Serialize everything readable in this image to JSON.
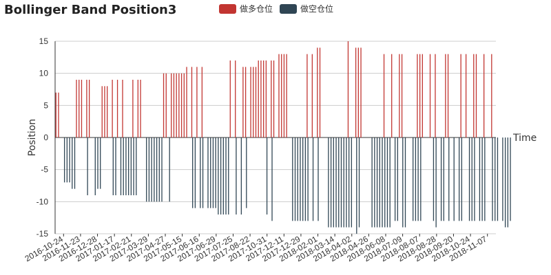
{
  "chart_data": {
    "type": "bar",
    "title": "Bollinger Band Position3",
    "xlabel": "Time",
    "ylabel": "Position",
    "ylim": [
      -15,
      15
    ],
    "yticks": [
      -15,
      -10,
      -5,
      0,
      5,
      10,
      15
    ],
    "grid": true,
    "legend_position": "top-center",
    "x_ticks": [
      "2016-10-24",
      "2016-11-23",
      "2016-12-28",
      "2017-01-17",
      "2017-02-21",
      "2017-03-29",
      "2017-04-27",
      "2017-05-15",
      "2017-06-16",
      "2017-06-29",
      "2017-07-25",
      "2017-08-22",
      "2017-10-31",
      "2017-12-11",
      "2017-12-29",
      "2018-02-01",
      "2018-03-14",
      "2018-04-02",
      "2018-04-26",
      "2018-06-08",
      "2018-07-09",
      "2018-08-07",
      "2018-08-28",
      "2018-09-20",
      "2018-10-24",
      "2018-11-07"
    ],
    "series": [
      {
        "name": "做多仓位",
        "color": "#c23531",
        "values": [
          7,
          7,
          0,
          0,
          0,
          0,
          0,
          0,
          9,
          9,
          9,
          0,
          9,
          9,
          0,
          0,
          0,
          0,
          8,
          8,
          8,
          0,
          9,
          0,
          9,
          0,
          9,
          0,
          0,
          0,
          9,
          0,
          9,
          9,
          0,
          0,
          0,
          0,
          0,
          0,
          0,
          0,
          10,
          10,
          0,
          10,
          10,
          10,
          10,
          10,
          10,
          11,
          0,
          11,
          0,
          11,
          0,
          11,
          0,
          0,
          0,
          0,
          0,
          0,
          0,
          0,
          0,
          0,
          12,
          0,
          12,
          0,
          0,
          11,
          11,
          0,
          11,
          11,
          11,
          12,
          12,
          12,
          12,
          0,
          12,
          12,
          0,
          13,
          13,
          13,
          13,
          0,
          0,
          0,
          0,
          0,
          0,
          0,
          13,
          0,
          13,
          0,
          14,
          14,
          0,
          0,
          0,
          0,
          0,
          0,
          0,
          0,
          0,
          0,
          15,
          0,
          0,
          14,
          14,
          14,
          0,
          0,
          0,
          0,
          0,
          0,
          0,
          0,
          13,
          0,
          0,
          13,
          0,
          0,
          13,
          13,
          0,
          0,
          0,
          0,
          0,
          13,
          13,
          13,
          0,
          0,
          13,
          0,
          13,
          0,
          0,
          0,
          13,
          13,
          0,
          0,
          0,
          0,
          13,
          0,
          13,
          0,
          0,
          13,
          13,
          0,
          0,
          13,
          0,
          0,
          13,
          0
        ],
        "shown_as": "vertical spikes"
      },
      {
        "name": "做空仓位",
        "color": "#2f4554",
        "values": [
          0,
          0,
          0,
          -7,
          -7,
          -7,
          -8,
          -8,
          0,
          0,
          0,
          0,
          -9,
          0,
          0,
          -9,
          -8,
          -8,
          0,
          0,
          0,
          0,
          -9,
          -9,
          0,
          -9,
          -9,
          -9,
          -9,
          -9,
          -9,
          -9,
          0,
          0,
          0,
          -10,
          -10,
          -10,
          -10,
          -10,
          -10,
          -10,
          0,
          0,
          -10,
          0,
          0,
          0,
          0,
          0,
          0,
          0,
          0,
          -11,
          -11,
          0,
          -11,
          -11,
          0,
          -11,
          -11,
          -11,
          -11,
          -12,
          -12,
          -12,
          -12,
          -12,
          0,
          0,
          -12,
          0,
          -12,
          0,
          -11,
          0,
          0,
          0,
          0,
          0,
          0,
          0,
          -12,
          0,
          -13,
          0,
          0,
          0,
          0,
          0,
          0,
          0,
          -13,
          -13,
          -13,
          -13,
          -13,
          -13,
          -13,
          0,
          -13,
          0,
          -13,
          0,
          0,
          0,
          -14,
          -14,
          -14,
          -14,
          -14,
          -14,
          -14,
          -14,
          -14,
          -14,
          0,
          -15,
          -14,
          0,
          0,
          0,
          0,
          -14,
          -14,
          -14,
          -14,
          -14,
          -14,
          -14,
          -14,
          0,
          -13,
          -13,
          0,
          -14,
          -14,
          0,
          0,
          -13,
          -13,
          -13,
          -13,
          0,
          0,
          0,
          0,
          -13,
          -14,
          0,
          -13,
          -13,
          0,
          -13,
          0,
          -13,
          0,
          -13,
          -13,
          0,
          0,
          -13,
          -13,
          -13,
          0,
          -13,
          -13,
          -13,
          0,
          0,
          -13,
          -13,
          -13,
          0,
          -13,
          -14,
          -14,
          -13
        ]
      }
    ]
  }
}
